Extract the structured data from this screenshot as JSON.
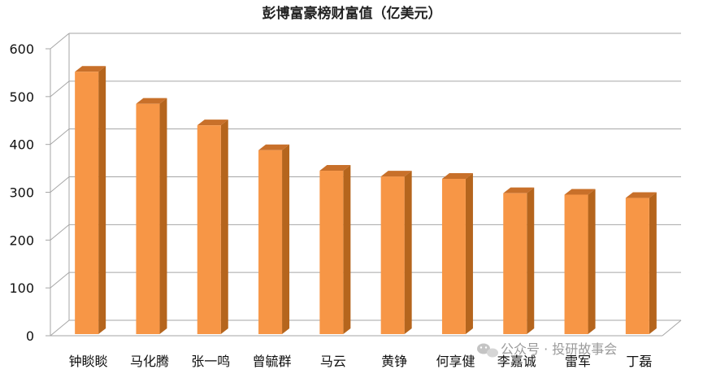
{
  "chart_data": {
    "type": "bar",
    "title": "彭博富豪榜财富值（亿美元）",
    "xlabel": "",
    "ylabel": "",
    "ylim": [
      0,
      600
    ],
    "yticks": [
      0,
      100,
      200,
      300,
      400,
      500,
      600
    ],
    "grid": true,
    "three_d": true,
    "categories": [
      "钟睒睒",
      "马化腾",
      "张一鸣",
      "曾毓群",
      "马云",
      "黄铮",
      "何享健",
      "李嘉诚",
      "雷军",
      "丁磊"
    ],
    "values": [
      552,
      485,
      440,
      388,
      345,
      333,
      328,
      298,
      295,
      288
    ]
  },
  "colors": {
    "bar_front": "#F79646",
    "bar_side": "#B5651D",
    "bar_top": "#C8702A",
    "grid": "#A6A6A6",
    "text": "#111111"
  },
  "watermark": {
    "icon": "wechat-icon",
    "text": "公众号 · 投研故事会"
  }
}
